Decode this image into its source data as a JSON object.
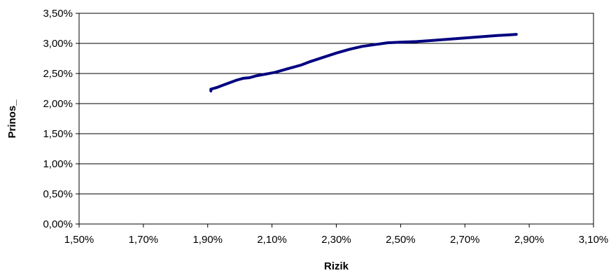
{
  "chart_data": {
    "type": "line",
    "title": "",
    "xlabel": "Rizik",
    "ylabel": "Prinos_",
    "xlim": [
      1.5,
      3.1
    ],
    "ylim": [
      0.0,
      3.5
    ],
    "x_ticks": [
      1.5,
      1.7,
      1.9,
      2.1,
      2.3,
      2.5,
      2.7,
      2.9,
      3.1
    ],
    "y_ticks": [
      0.0,
      0.5,
      1.0,
      1.5,
      2.0,
      2.5,
      3.0,
      3.5
    ],
    "x_tick_labels": [
      "1,50%",
      "1,70%",
      "1,90%",
      "2,10%",
      "2,30%",
      "2,50%",
      "2,70%",
      "2,90%",
      "3,10%"
    ],
    "y_tick_labels": [
      "0,00%",
      "0,50%",
      "1,00%",
      "1,50%",
      "2,00%",
      "2,50%",
      "3,00%",
      "3,50%"
    ],
    "grid": "horizontal",
    "legend": "none",
    "series": [
      {
        "color": "#000080",
        "x": [
          1.91,
          1.91,
          1.93,
          1.95,
          1.97,
          1.99,
          2.01,
          2.03,
          2.05,
          2.08,
          2.11,
          2.15,
          2.19,
          2.22,
          2.26,
          2.3,
          2.34,
          2.38,
          2.42,
          2.46,
          2.5,
          2.55,
          2.6,
          2.65,
          2.7,
          2.75,
          2.8,
          2.83,
          2.86
        ],
        "y": [
          2.21,
          2.24,
          2.27,
          2.31,
          2.35,
          2.39,
          2.42,
          2.43,
          2.46,
          2.49,
          2.52,
          2.58,
          2.64,
          2.7,
          2.77,
          2.84,
          2.9,
          2.95,
          2.98,
          3.01,
          3.02,
          3.03,
          3.05,
          3.07,
          3.09,
          3.11,
          3.13,
          3.14,
          3.15
        ]
      }
    ]
  }
}
